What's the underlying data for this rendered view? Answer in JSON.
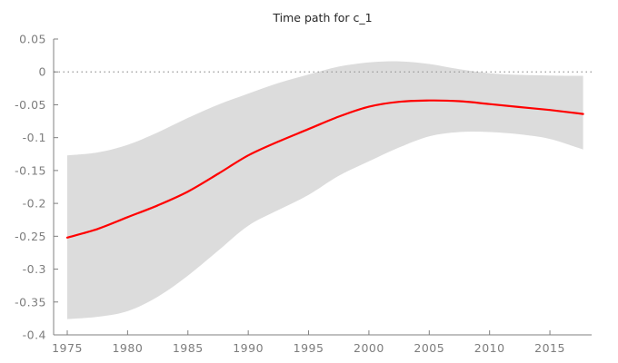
{
  "chart_data": {
    "type": "line",
    "title": "Time path for c_1",
    "xlabel": "",
    "ylabel": "",
    "grid": false,
    "legend": "none",
    "xlim": [
      1973.87,
      2018.46
    ],
    "ylim": [
      -0.4,
      0.05
    ],
    "x_ticks": [
      1975,
      1980,
      1985,
      1990,
      1995,
      2000,
      2005,
      2010,
      2015
    ],
    "y_ticks": [
      0.05,
      0,
      -0.05,
      -0.1,
      -0.15,
      -0.2,
      -0.25,
      -0.3,
      -0.35,
      -0.4
    ],
    "y_tick_labels": [
      "0.05",
      "0",
      "-0.05",
      "-0.1",
      "-0.15",
      "-0.2",
      "-0.25",
      "-0.3",
      "-0.35",
      "-0.4"
    ],
    "zero_reference_line": 0,
    "x": [
      1975,
      1977.5,
      1980,
      1982.5,
      1985,
      1987.5,
      1990,
      1992.5,
      1995,
      1997.5,
      2000,
      2002.5,
      2005,
      2007.5,
      2010,
      2012.5,
      2015,
      2017.75
    ],
    "series": [
      {
        "name": "mean time path",
        "type": "line",
        "values": [
          -0.252,
          -0.239,
          -0.221,
          -0.203,
          -0.182,
          -0.155,
          -0.127,
          -0.106,
          -0.087,
          -0.068,
          -0.053,
          -0.0455,
          -0.0435,
          -0.0445,
          -0.049,
          -0.0535,
          -0.058,
          -0.064
        ]
      }
    ],
    "band": {
      "name": "confidence band",
      "upper": [
        -0.127,
        -0.1225,
        -0.111,
        -0.092,
        -0.07,
        -0.05,
        -0.033,
        -0.017,
        -0.004,
        0.008,
        0.0145,
        0.016,
        0.012,
        0.004,
        -0.002,
        -0.0045,
        -0.0055,
        -0.006
      ],
      "lower": [
        -0.376,
        -0.3725,
        -0.364,
        -0.342,
        -0.31,
        -0.272,
        -0.234,
        -0.21,
        -0.187,
        -0.158,
        -0.136,
        -0.115,
        -0.098,
        -0.0915,
        -0.0915,
        -0.095,
        -0.102,
        -0.118
      ]
    },
    "style": {
      "line_color": "#ff0000",
      "line_width": 2.2,
      "band_color": "#dcdcdc",
      "axis_color": "#808080",
      "tick_label_color": "#7d7d7d",
      "title_color": "#262626",
      "zero_line_color": "#999999",
      "background": "#ffffff"
    }
  }
}
